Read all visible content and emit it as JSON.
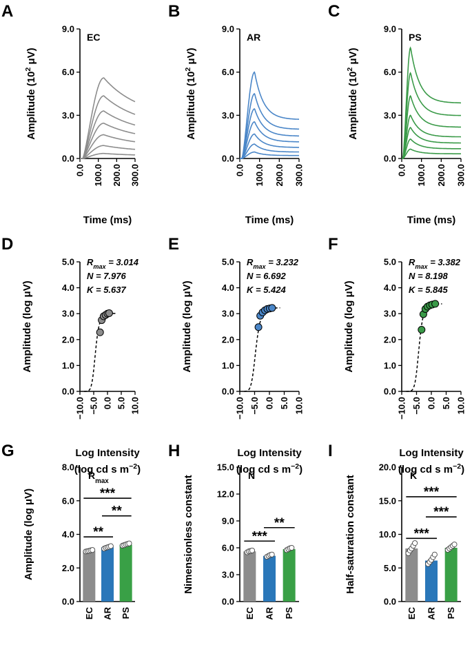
{
  "colors": {
    "EC": "#8c8c8c",
    "AR": "#4a86c8",
    "PS": "#3a9a48",
    "AR_bar": "#2a77b9",
    "PS_bar": "#39a046",
    "axis": "#000000"
  },
  "chart_data": [
    {
      "panel": "A",
      "type": "line",
      "inset": "EC",
      "color_key": "EC",
      "xlabel": "Time (ms)",
      "ylabel_main": "Amplitude (10",
      "ylabel_sup": "2",
      "ylabel_end": " μV)",
      "xlim": [
        0,
        300
      ],
      "ylim": [
        0,
        9
      ],
      "xticks": [
        0,
        100,
        200,
        300
      ],
      "xtick_labels": [
        "0.0",
        "100.0",
        "200.0",
        "300.0"
      ],
      "yticks": [
        0,
        3,
        6,
        9
      ],
      "ytick_labels": [
        "0.0",
        "3.0",
        "6.0",
        "9.0"
      ],
      "shape": {
        "onset": 15,
        "peak_t": 130,
        "rise_pow": 1.3,
        "decay_tau": 190,
        "steady_frac": 0.5
      },
      "peaks": [
        0.35,
        0.9,
        1.65,
        2.45,
        3.3,
        4.35,
        5.6
      ]
    },
    {
      "panel": "B",
      "type": "line",
      "inset": "AR",
      "color_key": "AR",
      "xlabel": "Time (ms)",
      "ylabel_main": "Amplitude (10",
      "ylabel_sup": "2",
      "ylabel_end": " μV)",
      "xlim": [
        0,
        300
      ],
      "ylim": [
        0,
        9
      ],
      "xticks": [
        0,
        100,
        200,
        300
      ],
      "xtick_labels": [
        "0.0",
        "100.0",
        "200.0",
        "300.0"
      ],
      "yticks": [
        0,
        3,
        6,
        9
      ],
      "ytick_labels": [
        "0.0",
        "3.0",
        "6.0",
        "9.0"
      ],
      "shape": {
        "onset": 10,
        "peak_t": 75,
        "rise_pow": 1.5,
        "decay_tau": 45,
        "steady_frac": 0.45
      },
      "peaks": [
        0.45,
        1.0,
        1.7,
        2.55,
        3.45,
        4.5,
        6.0
      ]
    },
    {
      "panel": "C",
      "type": "line",
      "inset": "PS",
      "color_key": "PS",
      "xlabel": "Time (ms)",
      "ylabel_main": "Amplitude (10",
      "ylabel_sup": "2",
      "ylabel_end": " μV)",
      "xlim": [
        0,
        300
      ],
      "ylim": [
        0,
        9
      ],
      "xticks": [
        0,
        100,
        200,
        300
      ],
      "xtick_labels": [
        "0.0",
        "100.0",
        "200.0",
        "300.0"
      ],
      "yticks": [
        0,
        3,
        6,
        9
      ],
      "ytick_labels": [
        "0.0",
        "3.0",
        "6.0",
        "9.0"
      ],
      "shape": {
        "onset": 5,
        "peak_t": 45,
        "rise_pow": 1.6,
        "decay_tau": 45,
        "steady_frac": 0.5
      },
      "peaks": [
        0.65,
        1.35,
        2.15,
        3.0,
        4.35,
        5.95,
        7.7
      ]
    },
    {
      "panel": "D",
      "type": "scatter",
      "color_key": "EC",
      "xlabel": "Log Intensity",
      "xlabel2_main": "(log cd s m",
      "xlabel2_sup": "−2",
      "xlabel2_end": ")",
      "ylabel": "Amplitude (log μV)",
      "xlim": [
        -10,
        10
      ],
      "ylim": [
        0,
        5
      ],
      "xticks": [
        -10,
        -5,
        0,
        5,
        10
      ],
      "xtick_labels": [
        "−10.0",
        "−5.0",
        "0.0",
        "5.0",
        "10.0"
      ],
      "yticks": [
        0,
        1,
        2,
        3,
        4,
        5
      ],
      "ytick_labels": [
        "0.0",
        "1.0",
        "2.0",
        "3.0",
        "4.0",
        "5.0"
      ],
      "fit": {
        "Rmax": 3.014,
        "N": 7.976,
        "K": 5.637,
        "x_shift": 10
      },
      "param_labels": [
        "R",
        "max",
        " = 3.014",
        "N = 7.976",
        "K = 5.637"
      ],
      "points": [
        {
          "x": -2.7,
          "y": 2.28
        },
        {
          "x": -2.1,
          "y": 2.75
        },
        {
          "x": -1.4,
          "y": 2.9
        },
        {
          "x": -0.7,
          "y": 2.95
        },
        {
          "x": 0.0,
          "y": 3.0
        },
        {
          "x": 0.6,
          "y": 3.02
        }
      ]
    },
    {
      "panel": "E",
      "type": "scatter",
      "color_key": "AR",
      "xlabel": "Log Intensity",
      "xlabel2_main": "(log cd s m",
      "xlabel2_sup": "−2",
      "xlabel2_end": ")",
      "ylabel": "Amplitude (log μV)",
      "xlim": [
        -10,
        10
      ],
      "ylim": [
        0,
        5
      ],
      "xticks": [
        -10,
        -5,
        0,
        5,
        10
      ],
      "xtick_labels": [
        "−10.0",
        "−5.0",
        "0.0",
        "5.0",
        "10.0"
      ],
      "yticks": [
        0,
        1,
        2,
        3,
        4,
        5
      ],
      "ytick_labels": [
        "0.0",
        "1.0",
        "2.0",
        "3.0",
        "4.0",
        "5.0"
      ],
      "fit": {
        "Rmax": 3.232,
        "N": 6.692,
        "K": 5.424,
        "x_shift": 10
      },
      "param_labels": [
        "R",
        "max",
        " = 3.232",
        "N = 6.692",
        "K = 5.424"
      ],
      "points": [
        {
          "x": -3.7,
          "y": 2.48
        },
        {
          "x": -3.1,
          "y": 2.92
        },
        {
          "x": -2.3,
          "y": 3.05
        },
        {
          "x": -1.5,
          "y": 3.13
        },
        {
          "x": -0.7,
          "y": 3.18
        },
        {
          "x": 0.1,
          "y": 3.2
        },
        {
          "x": 0.9,
          "y": 3.22
        }
      ]
    },
    {
      "panel": "F",
      "type": "scatter",
      "color_key": "PS",
      "xlabel": "Log Intensity",
      "xlabel2_main": "(log cd s m",
      "xlabel2_sup": "−2",
      "xlabel2_end": ")",
      "ylabel": "Amplitude (log μV)",
      "xlim": [
        -10,
        10
      ],
      "ylim": [
        0,
        5
      ],
      "xticks": [
        -10,
        -5,
        0,
        5,
        10
      ],
      "xtick_labels": [
        "−10.0",
        "−5.0",
        "0.0",
        "5.0",
        "10.0"
      ],
      "yticks": [
        0,
        1,
        2,
        3,
        4,
        5
      ],
      "ytick_labels": [
        "0.0",
        "1.0",
        "2.0",
        "3.0",
        "4.0",
        "5.0"
      ],
      "fit": {
        "Rmax": 3.382,
        "N": 8.198,
        "K": 5.845,
        "x_shift": 10
      },
      "param_labels": [
        "R",
        "max",
        " = 3.382",
        "N = 8.198",
        "K = 5.845"
      ],
      "points": [
        {
          "x": -3.3,
          "y": 2.38
        },
        {
          "x": -2.7,
          "y": 2.98
        },
        {
          "x": -2.0,
          "y": 3.18
        },
        {
          "x": -1.3,
          "y": 3.27
        },
        {
          "x": -0.5,
          "y": 3.32
        },
        {
          "x": 0.3,
          "y": 3.35
        },
        {
          "x": 1.3,
          "y": 3.38
        }
      ]
    },
    {
      "panel": "G",
      "type": "bar",
      "inset_main": "R",
      "inset_sub": "max",
      "ylabel": "Amplitude (log μV)",
      "categories": [
        "EC",
        "AR",
        "PS"
      ],
      "values": [
        3.01,
        3.23,
        3.38
      ],
      "ylim": [
        0,
        8
      ],
      "yticks": [
        0,
        2,
        4,
        6,
        8
      ],
      "ytick_labels": [
        "0.0",
        "2.0",
        "4.0",
        "6.0",
        "8.0"
      ],
      "dots": [
        [
          2.98,
          3.0,
          3.02,
          3.05,
          3.07
        ],
        [
          3.15,
          3.2,
          3.23,
          3.26,
          3.3
        ],
        [
          3.33,
          3.36,
          3.4,
          3.43,
          3.46
        ]
      ],
      "sig": [
        {
          "from": 0,
          "to": 1,
          "y": 3.85,
          "label": "**"
        },
        {
          "from": 1,
          "to": 2,
          "y": 5.1,
          "label": "**"
        },
        {
          "from": 0,
          "to": 2,
          "y": 6.15,
          "label": "***"
        }
      ]
    },
    {
      "panel": "H",
      "type": "bar",
      "inset_main": "N",
      "inset_sub": "",
      "ylabel": "Nimensionless constant",
      "categories": [
        "EC",
        "AR",
        "PS"
      ],
      "values": [
        5.6,
        5.1,
        5.85
      ],
      "ylim": [
        0,
        15
      ],
      "yticks": [
        0,
        3,
        6,
        9,
        12,
        15
      ],
      "ytick_labels": [
        "0.0",
        "3.0",
        "6.0",
        "9.0",
        "12.0",
        "15.0"
      ],
      "dots": [
        [
          5.5,
          5.6,
          5.65,
          5.7
        ],
        [
          5.0,
          5.1,
          5.2,
          5.25
        ],
        [
          5.75,
          5.85,
          5.95,
          6.0
        ]
      ],
      "sig": [
        {
          "from": 0,
          "to": 1,
          "y": 6.75,
          "label": "***"
        },
        {
          "from": 1,
          "to": 2,
          "y": 8.25,
          "label": "**"
        }
      ]
    },
    {
      "panel": "I",
      "type": "bar",
      "inset_main": "K",
      "inset_sub": "",
      "ylabel": "Half-saturation constant",
      "categories": [
        "EC",
        "AR",
        "PS"
      ],
      "values": [
        7.9,
        6.1,
        8.0
      ],
      "ylim": [
        0,
        20
      ],
      "yticks": [
        0,
        5,
        10,
        15,
        20
      ],
      "ytick_labels": [
        "0.0",
        "5.0",
        "10.0",
        "15.0",
        "20.0"
      ],
      "dots": [
        [
          7.2,
          7.6,
          7.9,
          8.3,
          8.7
        ],
        [
          5.6,
          5.9,
          6.2,
          6.6,
          7.0
        ],
        [
          7.7,
          7.9,
          8.1,
          8.3,
          8.5
        ]
      ],
      "sig": [
        {
          "from": 0,
          "to": 1,
          "y": 9.4,
          "label": "***"
        },
        {
          "from": 1,
          "to": 2,
          "y": 12.6,
          "label": "***"
        },
        {
          "from": 0,
          "to": 2,
          "y": 15.6,
          "label": "***"
        }
      ]
    }
  ]
}
